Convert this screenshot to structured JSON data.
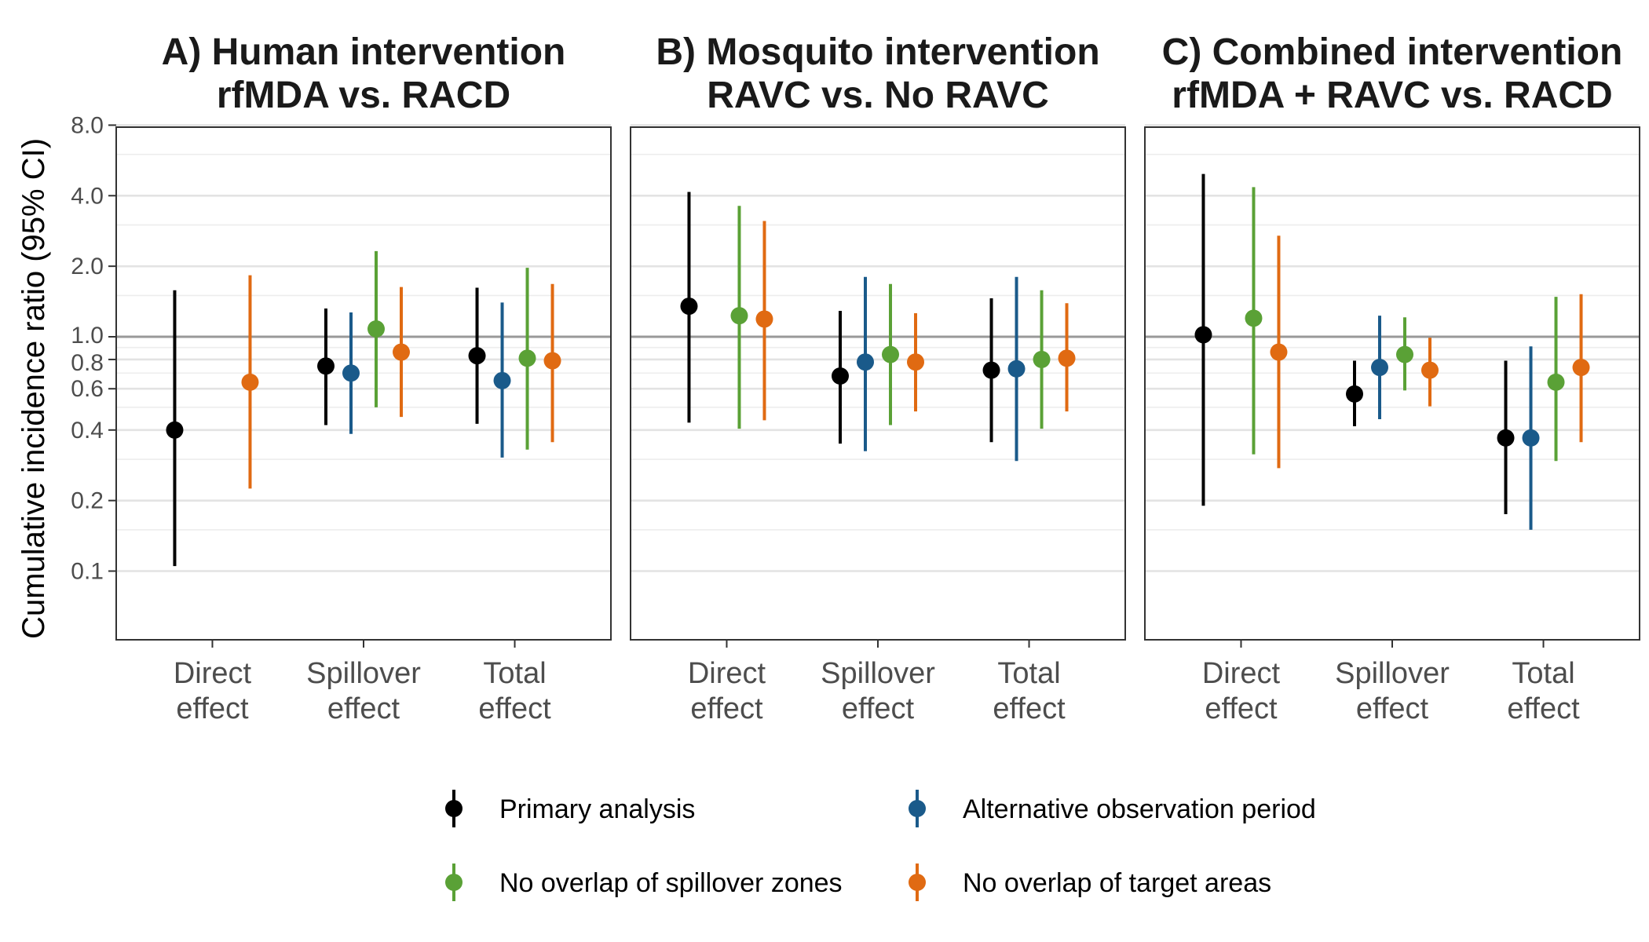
{
  "chart_data": {
    "type": "scatter",
    "ylabel": "Cumulative incidence ratio (95% CI)",
    "yscale": "log",
    "ylim": [
      0.05,
      8.0
    ],
    "yticks": [
      0.1,
      0.2,
      0.4,
      0.6,
      0.8,
      1.0,
      2.0,
      4.0,
      8.0
    ],
    "ytick_labels": [
      "0.1",
      "0.2",
      "0.4",
      "0.6",
      "0.8",
      "1.0",
      "2.0",
      "4.0",
      "8.0"
    ],
    "minor_gridlines": [
      0.15,
      0.3,
      0.5,
      0.7,
      0.9,
      1.5,
      3.0,
      6.0
    ],
    "reference_line": 1.0,
    "categories": [
      "Direct\neffect",
      "Spillover\neffect",
      "Total\neffect"
    ],
    "legend_position": "bottom",
    "series_styles": [
      {
        "name": "Primary analysis",
        "color": "#000000"
      },
      {
        "name": "Alternative observation period",
        "color": "#1a5a8a"
      },
      {
        "name": "No overlap of spillover zones",
        "color": "#5aa136"
      },
      {
        "name": "No overlap of target areas",
        "color": "#e06a12"
      }
    ],
    "panels": [
      {
        "title_line1": "A) Human intervention",
        "title_line2": "rfMDA vs. RACD",
        "points": [
          {
            "category": 0,
            "series": 0,
            "est": 0.4,
            "lo": 0.105,
            "hi": 1.58
          },
          {
            "category": 0,
            "series": 3,
            "est": 0.64,
            "lo": 0.225,
            "hi": 1.83
          },
          {
            "category": 1,
            "series": 0,
            "est": 0.75,
            "lo": 0.42,
            "hi": 1.32
          },
          {
            "category": 1,
            "series": 1,
            "est": 0.7,
            "lo": 0.385,
            "hi": 1.27
          },
          {
            "category": 1,
            "series": 2,
            "est": 1.08,
            "lo": 0.5,
            "hi": 2.32
          },
          {
            "category": 1,
            "series": 3,
            "est": 0.86,
            "lo": 0.455,
            "hi": 1.63
          },
          {
            "category": 2,
            "series": 0,
            "est": 0.83,
            "lo": 0.425,
            "hi": 1.62
          },
          {
            "category": 2,
            "series": 1,
            "est": 0.65,
            "lo": 0.305,
            "hi": 1.4
          },
          {
            "category": 2,
            "series": 2,
            "est": 0.81,
            "lo": 0.33,
            "hi": 1.97
          },
          {
            "category": 2,
            "series": 3,
            "est": 0.79,
            "lo": 0.355,
            "hi": 1.68
          }
        ]
      },
      {
        "title_line1": "B) Mosquito intervention",
        "title_line2": "RAVC vs. No RAVC",
        "points": [
          {
            "category": 0,
            "series": 0,
            "est": 1.35,
            "lo": 0.43,
            "hi": 4.15
          },
          {
            "category": 0,
            "series": 2,
            "est": 1.23,
            "lo": 0.405,
            "hi": 3.62
          },
          {
            "category": 0,
            "series": 3,
            "est": 1.19,
            "lo": 0.44,
            "hi": 3.12
          },
          {
            "category": 1,
            "series": 0,
            "est": 0.68,
            "lo": 0.35,
            "hi": 1.29
          },
          {
            "category": 1,
            "series": 1,
            "est": 0.78,
            "lo": 0.325,
            "hi": 1.8
          },
          {
            "category": 1,
            "series": 2,
            "est": 0.84,
            "lo": 0.42,
            "hi": 1.68
          },
          {
            "category": 1,
            "series": 3,
            "est": 0.78,
            "lo": 0.48,
            "hi": 1.26
          },
          {
            "category": 2,
            "series": 0,
            "est": 0.72,
            "lo": 0.355,
            "hi": 1.46
          },
          {
            "category": 2,
            "series": 1,
            "est": 0.73,
            "lo": 0.295,
            "hi": 1.8
          },
          {
            "category": 2,
            "series": 2,
            "est": 0.8,
            "lo": 0.405,
            "hi": 1.58
          },
          {
            "category": 2,
            "series": 3,
            "est": 0.81,
            "lo": 0.48,
            "hi": 1.39
          }
        ]
      },
      {
        "title_line1": "C) Combined intervention",
        "title_line2": "rfMDA + RAVC vs. RACD",
        "points": [
          {
            "category": 0,
            "series": 0,
            "est": 1.02,
            "lo": 0.19,
            "hi": 4.95
          },
          {
            "category": 0,
            "series": 2,
            "est": 1.2,
            "lo": 0.315,
            "hi": 4.35
          },
          {
            "category": 0,
            "series": 3,
            "est": 0.86,
            "lo": 0.275,
            "hi": 2.7
          },
          {
            "category": 1,
            "series": 0,
            "est": 0.57,
            "lo": 0.415,
            "hi": 0.79
          },
          {
            "category": 1,
            "series": 1,
            "est": 0.74,
            "lo": 0.445,
            "hi": 1.23
          },
          {
            "category": 1,
            "series": 2,
            "est": 0.84,
            "lo": 0.59,
            "hi": 1.21
          },
          {
            "category": 1,
            "series": 3,
            "est": 0.72,
            "lo": 0.505,
            "hi": 0.99
          },
          {
            "category": 2,
            "series": 0,
            "est": 0.37,
            "lo": 0.175,
            "hi": 0.79
          },
          {
            "category": 2,
            "series": 1,
            "est": 0.37,
            "lo": 0.15,
            "hi": 0.91
          },
          {
            "category": 2,
            "series": 2,
            "est": 0.64,
            "lo": 0.295,
            "hi": 1.48
          },
          {
            "category": 2,
            "series": 3,
            "est": 0.74,
            "lo": 0.355,
            "hi": 1.52
          }
        ]
      }
    ]
  }
}
